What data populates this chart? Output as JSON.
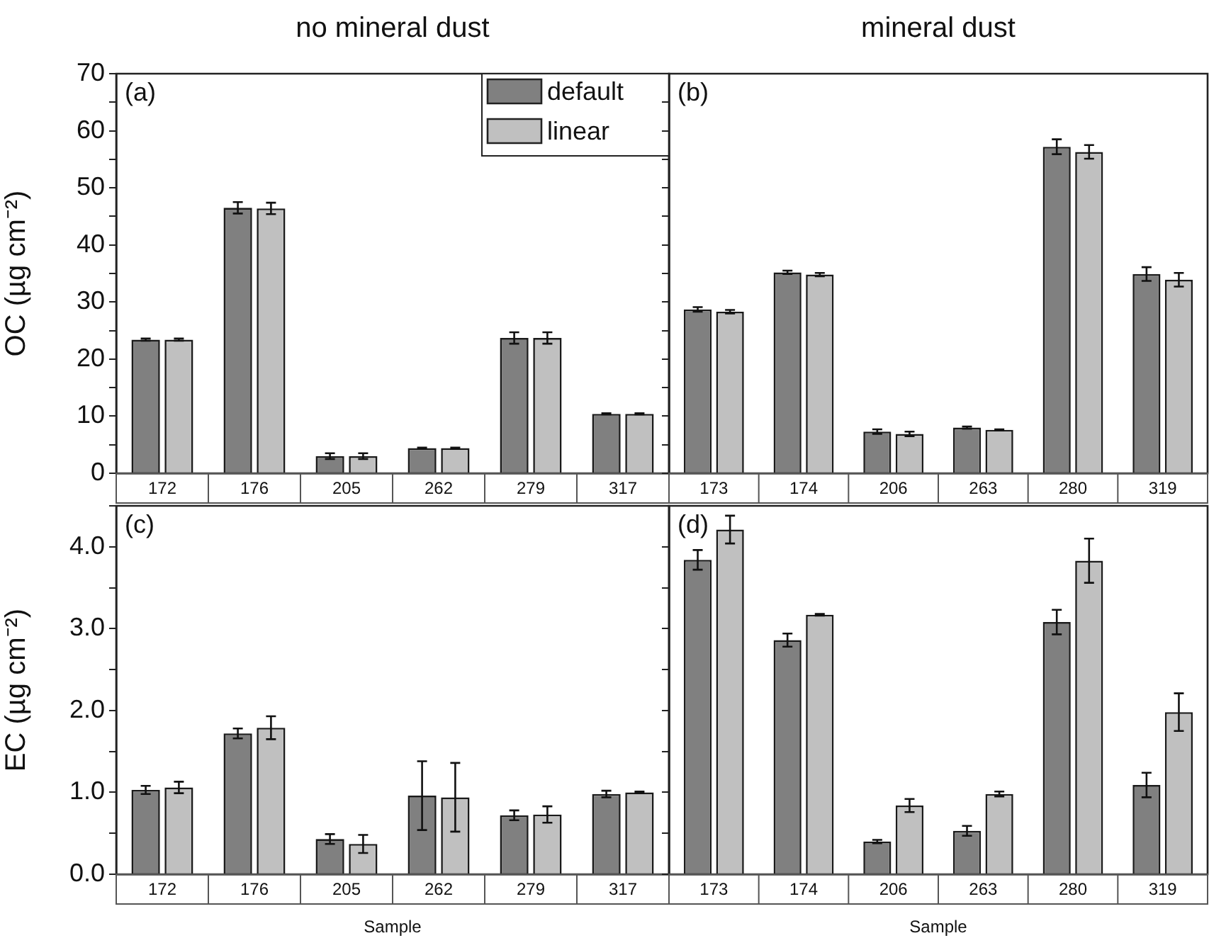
{
  "chart_data": [
    {
      "type": "bar",
      "title": "no mineral dust",
      "ylabel": "OC (µg cm⁻²)",
      "categories": [
        "172",
        "176",
        "205",
        "262",
        "279",
        "317"
      ],
      "series": [
        {
          "name": "default",
          "color": "#808080",
          "values": [
            23.4,
            46.5,
            3.0,
            4.4,
            23.7,
            10.4
          ],
          "errors": [
            0.2,
            1.0,
            0.5,
            0.1,
            1.0,
            0.1
          ]
        },
        {
          "name": "linear",
          "color": "#c0c0c0",
          "values": [
            23.4,
            46.4,
            3.0,
            4.4,
            23.7,
            10.4
          ],
          "errors": [
            0.2,
            1.0,
            0.5,
            0.1,
            1.0,
            0.1
          ]
        }
      ],
      "ylim": [
        0,
        70
      ],
      "yticks": [
        0,
        {
          "value": 5,
          "label": null
        },
        10,
        {
          "value": 15,
          "label": null
        },
        20,
        {
          "value": 25,
          "label": null
        },
        30,
        {
          "value": 35,
          "label": null
        },
        40,
        {
          "value": 45,
          "label": null
        },
        50,
        {
          "value": 55,
          "label": null
        },
        60,
        {
          "value": 65,
          "label": null
        },
        70
      ],
      "legend": "top right",
      "annotations": [
        "(a)"
      ]
    },
    {
      "type": "bar",
      "title": "mineral dust",
      "categories": [
        "173",
        "174",
        "206",
        "263",
        "280",
        "319"
      ],
      "series": [
        {
          "color": "#808080",
          "values": [
            28.7,
            35.2,
            7.3,
            8.0,
            57.2,
            34.9
          ],
          "errors": [
            0.4,
            0.3,
            0.4,
            0.2,
            1.3,
            1.2
          ]
        },
        {
          "color": "#c0c0c0",
          "values": [
            28.3,
            34.8,
            6.9,
            7.6,
            56.3,
            33.9
          ],
          "errors": [
            0.3,
            0.3,
            0.4,
            0.1,
            1.2,
            1.2
          ]
        }
      ],
      "ylim": [
        0,
        70
      ],
      "yticks": [
        0,
        {
          "value": 5,
          "label": null
        },
        10,
        {
          "value": 15,
          "label": null
        },
        20,
        {
          "value": 25,
          "label": null
        },
        30,
        {
          "value": 35,
          "label": null
        },
        40,
        {
          "value": 45,
          "label": null
        },
        50,
        {
          "value": 55,
          "label": null
        },
        60,
        {
          "value": 65,
          "label": null
        },
        70
      ],
      "tick_labels": "x",
      "annotations": [
        "(b)"
      ]
    },
    {
      "type": "bar",
      "xlabel": "Sample",
      "ylabel": "EC (µg cm⁻²)",
      "categories": [
        "172",
        "176",
        "205",
        "262",
        "279",
        "317"
      ],
      "series": [
        {
          "color": "#808080",
          "values": [
            1.03,
            1.72,
            0.43,
            0.96,
            0.72,
            0.98
          ],
          "errors": [
            0.05,
            0.06,
            0.06,
            0.42,
            0.06,
            0.04
          ]
        },
        {
          "color": "#c0c0c0",
          "values": [
            1.06,
            1.79,
            0.37,
            0.94,
            0.73,
            1.0
          ],
          "errors": [
            0.07,
            0.14,
            0.11,
            0.42,
            0.1,
            0.01
          ]
        }
      ],
      "ylim": [
        0,
        4.5
      ],
      "yticks": [
        {
          "value": 0,
          "label": "0.0"
        },
        {
          "value": 0.5,
          "label": null
        },
        {
          "value": 1,
          "label": "1.0"
        },
        {
          "value": 1.5,
          "label": null
        },
        {
          "value": 2,
          "label": "2.0"
        },
        {
          "value": 2.5,
          "label": null
        },
        {
          "value": 3,
          "label": "3.0"
        },
        {
          "value": 3.5,
          "label": null
        },
        {
          "value": 4,
          "label": "4.0"
        },
        {
          "value": 4.5,
          "label": null
        }
      ],
      "annotations": [
        "(c)"
      ]
    },
    {
      "type": "bar",
      "xlabel": "Sample",
      "categories": [
        "173",
        "174",
        "206",
        "263",
        "280",
        "319"
      ],
      "series": [
        {
          "color": "#808080",
          "values": [
            3.84,
            2.86,
            0.4,
            0.53,
            3.08,
            1.09
          ],
          "errors": [
            0.12,
            0.08,
            0.02,
            0.06,
            0.15,
            0.15
          ]
        },
        {
          "color": "#c0c0c0",
          "values": [
            4.21,
            3.17,
            0.84,
            0.98,
            3.83,
            1.98
          ],
          "errors": [
            0.17,
            0.01,
            0.08,
            0.03,
            0.27,
            0.23
          ]
        }
      ],
      "ylim": [
        0,
        4.5
      ],
      "yticks": [
        0,
        {
          "value": 0.5,
          "label": null
        },
        1,
        {
          "value": 1.5,
          "label": null
        },
        2,
        {
          "value": 2.5,
          "label": null
        },
        3,
        {
          "value": 3.5,
          "label": null
        },
        4,
        {
          "value": 4.5,
          "label": null
        }
      ],
      "tick_labels": "x",
      "annotations": [
        "(d)"
      ]
    }
  ]
}
